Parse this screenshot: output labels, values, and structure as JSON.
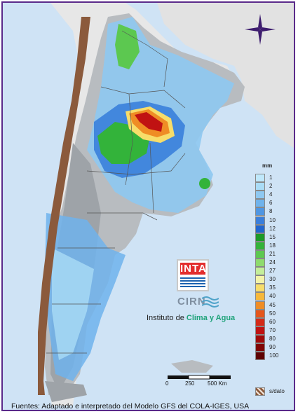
{
  "legend": {
    "unit": "mm",
    "entries": [
      {
        "label": "1",
        "color": "#bfe8fb"
      },
      {
        "label": "2",
        "color": "#aadcf6"
      },
      {
        "label": "4",
        "color": "#8ec8f1"
      },
      {
        "label": "6",
        "color": "#6fb3ec"
      },
      {
        "label": "8",
        "color": "#4f96e2"
      },
      {
        "label": "10",
        "color": "#3a7fdb"
      },
      {
        "label": "12",
        "color": "#2166cf"
      },
      {
        "label": "15",
        "color": "#1c9a2a"
      },
      {
        "label": "18",
        "color": "#33b33a"
      },
      {
        "label": "21",
        "color": "#5cc850"
      },
      {
        "label": "24",
        "color": "#8edb6d"
      },
      {
        "label": "27",
        "color": "#c4ee9a"
      },
      {
        "label": "30",
        "color": "#f3f3a8"
      },
      {
        "label": "35",
        "color": "#f7dd6a"
      },
      {
        "label": "40",
        "color": "#f6b83b"
      },
      {
        "label": "45",
        "color": "#ef8d25"
      },
      {
        "label": "50",
        "color": "#e4561c"
      },
      {
        "label": "60",
        "color": "#d42a18"
      },
      {
        "label": "70",
        "color": "#c01212"
      },
      {
        "label": "80",
        "color": "#a00a0a"
      },
      {
        "label": "90",
        "color": "#800505"
      },
      {
        "label": "100",
        "color": "#5e0303"
      }
    ],
    "nodata_label": "s/dato"
  },
  "scale": {
    "labels": [
      "0",
      "250",
      "500 Km"
    ]
  },
  "logo": {
    "inta": "INTA",
    "cirn": "CIRN"
  },
  "institute": {
    "prefix": "Instituto de ",
    "accent": "Clima y Agua"
  },
  "footer": "Fuentes: Adaptado e interpretado del Modelo GFS del COLA-IGES, USA",
  "icons": {
    "compass": "compass-rose-icon"
  }
}
